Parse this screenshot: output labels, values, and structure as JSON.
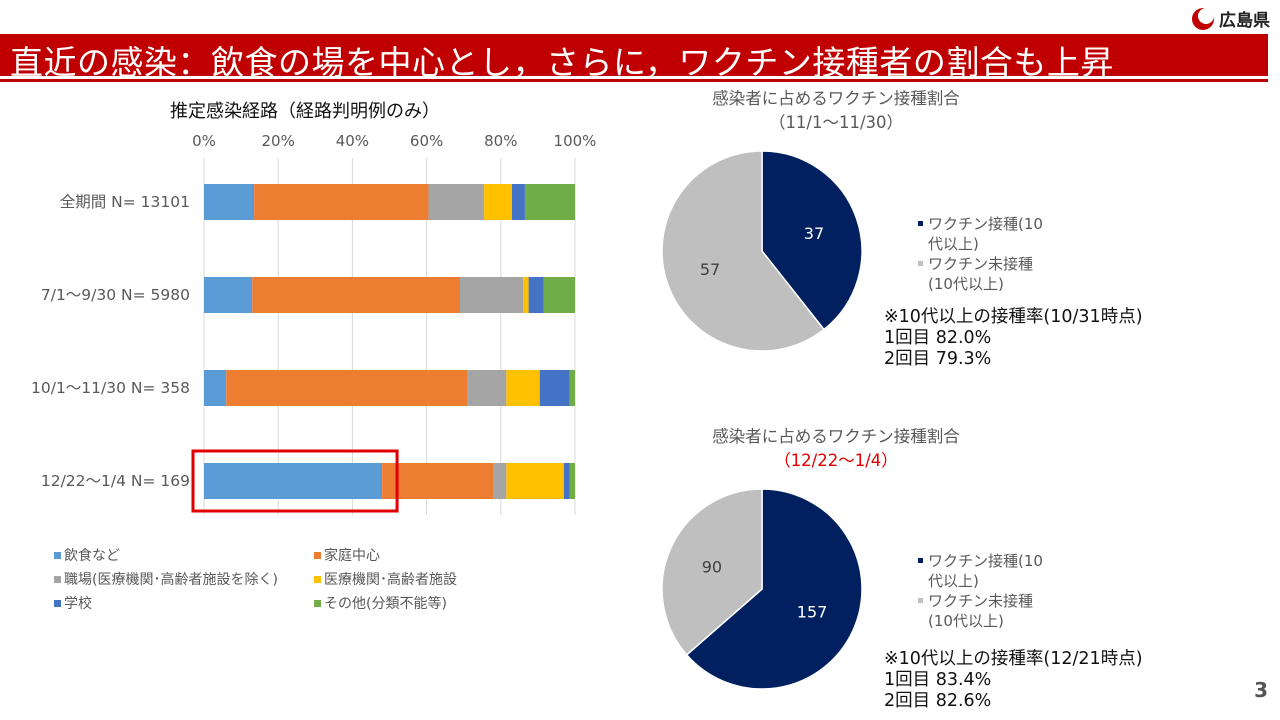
{
  "header": {
    "logo_text": "広島県",
    "title": "直近の感染：飲食の場を中心とし，さらに，ワクチン接種者の割合も上昇"
  },
  "page_number": "3",
  "colors": {
    "title_bar": "#c00000",
    "highlight_box": "#e00000",
    "vaccinated": "#002060",
    "unvaccinated": "#bfbfbf"
  },
  "chart_data": [
    {
      "type": "bar",
      "orientation": "horizontal",
      "stacked": "percent",
      "title": "推定感染経路（経路判明例のみ）",
      "categories": [
        "全期間 N= 13101",
        "7/1～9/30 N= 5980",
        "10/1～11/30 N= 358",
        "12/22～1/4 N= 169"
      ],
      "xlim": [
        0,
        100
      ],
      "x_ticks": [
        "0%",
        "20%",
        "40%",
        "60%",
        "80%",
        "100%"
      ],
      "grid": true,
      "legend_position": "bottom",
      "highlight": {
        "category": "12/22～1/4 N= 169",
        "series": "飲食など"
      },
      "series": [
        {
          "name": "飲食など",
          "color": "#5b9bd5",
          "values": [
            13.5,
            13,
            6,
            48
          ]
        },
        {
          "name": "家庭中心",
          "color": "#ed7d31",
          "values": [
            47,
            56,
            65,
            30
          ]
        },
        {
          "name": "職場(医療機関･高齢者施設を除く)",
          "color": "#a5a5a5",
          "values": [
            15,
            17,
            10.5,
            3.5
          ]
        },
        {
          "name": "医療機関･高齢者施設",
          "color": "#ffc000",
          "values": [
            7.5,
            1.5,
            9,
            15.5
          ]
        },
        {
          "name": "学校",
          "color": "#4472c4",
          "values": [
            3.5,
            4,
            8,
            1.5
          ]
        },
        {
          "name": "その他(分類不能等)",
          "color": "#70ad47",
          "values": [
            13.5,
            8.5,
            1.5,
            1.5
          ]
        }
      ]
    },
    {
      "type": "pie",
      "title": "感染者に占めるワクチン接種割合",
      "subtitle": "（11/1～11/30）",
      "categories": [
        "ワクチン接種(10代以上)",
        "ワクチン未接種(10代以上)"
      ],
      "values": [
        37,
        57
      ],
      "legend_position": "right"
    },
    {
      "type": "pie",
      "title": "感染者に占めるワクチン接種割合",
      "subtitle": "（12/22～1/4）",
      "subtitle_color": "#e00000",
      "categories": [
        "ワクチン接種(10代以上)",
        "ワクチン未接種(10代以上)"
      ],
      "values": [
        157,
        90
      ],
      "legend_position": "right"
    }
  ],
  "pie_legend": {
    "vaccinated_line1": "ワクチン接種(10",
    "vaccinated_line2": "代以上)",
    "unvaccinated_line1": "ワクチン未接種",
    "unvaccinated_line2": "(10代以上)"
  },
  "notes": [
    {
      "heading": "※10代以上の接種率(10/31時点)",
      "dose1": "1回目  82.0%",
      "dose2": "2回目  79.3%"
    },
    {
      "heading": "※10代以上の接種率(12/21時点)",
      "dose1": "1回目  83.4%",
      "dose2": "2回目  82.6%"
    }
  ]
}
